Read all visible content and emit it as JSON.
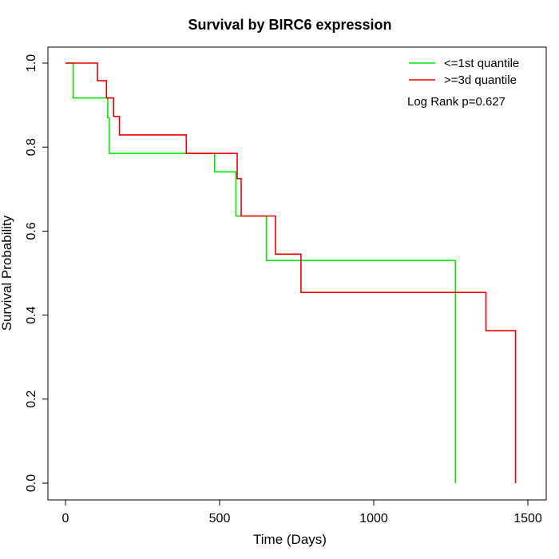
{
  "chart_data": {
    "type": "line",
    "title": "Survival by BIRC6 expression",
    "xlabel": "Time (Days)",
    "ylabel": "Survival Probability",
    "xlim": [
      0,
      1500
    ],
    "ylim": [
      0,
      1.0
    ],
    "x_ticks": [
      "0",
      "500",
      "1000",
      "1500"
    ],
    "y_ticks": [
      "0.0",
      "0.2",
      "0.4",
      "0.6",
      "0.8",
      "1.0"
    ],
    "grid": false,
    "legend_position": "top-right",
    "annotation": "Log Rank p=0.627",
    "series": [
      {
        "name": "<=1st quantile",
        "color": "#00ee00",
        "step": true,
        "x": [
          0,
          25,
          25,
          110,
          137,
          142,
          305,
          484,
          553,
          652,
          1265,
          1265
        ],
        "y": [
          1.0,
          1.0,
          0.917,
          0.917,
          0.87,
          0.785,
          0.785,
          0.741,
          0.636,
          0.53,
          0.397,
          0.0
        ]
      },
      {
        "name": ">=3d quantile",
        "color": "#ee0000",
        "step": true,
        "x": [
          0,
          47,
          104,
          133,
          156,
          175,
          392,
          557,
          570,
          681,
          764,
          1364,
          1460,
          1460
        ],
        "y": [
          1.0,
          1.0,
          0.958,
          0.917,
          0.873,
          0.829,
          0.785,
          0.725,
          0.636,
          0.545,
          0.454,
          0.363,
          0.182,
          0.0
        ]
      }
    ]
  }
}
